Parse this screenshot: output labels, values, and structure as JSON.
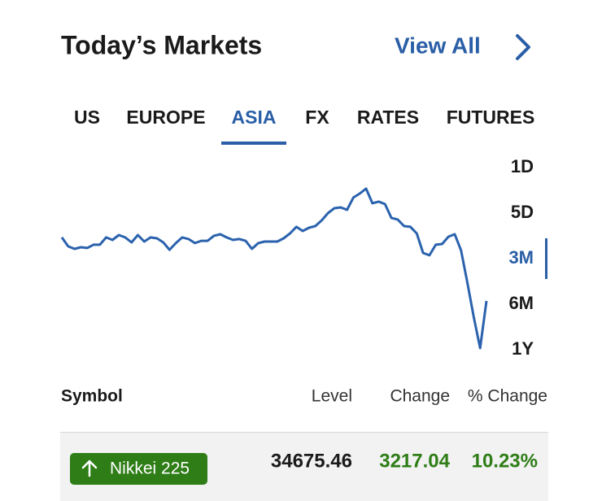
{
  "header": {
    "title": "Today’s Markets",
    "link": "View All"
  },
  "tabs": {
    "items": [
      "US",
      "EUROPE",
      "ASIA",
      "FX",
      "RATES",
      "FUTURES"
    ],
    "active": 2
  },
  "ranges": {
    "items": [
      "1D",
      "5D",
      "3M",
      "6M",
      "1Y"
    ],
    "active": 2
  },
  "chart_data": {
    "type": "line",
    "color": "#2a62ad",
    "values": [
      39010,
      38400,
      38230,
      38340,
      38290,
      38510,
      38510,
      39010,
      38840,
      39170,
      39010,
      38670,
      39170,
      38730,
      39010,
      38950,
      38670,
      38170,
      38620,
      39010,
      38900,
      38620,
      38780,
      38780,
      39120,
      39230,
      39010,
      38840,
      38900,
      38780,
      38230,
      38620,
      38730,
      38730,
      38730,
      38950,
      39280,
      39730,
      39450,
      39670,
      39780,
      40170,
      40670,
      41000,
      41060,
      40890,
      41730,
      42000,
      42340,
      41340,
      41450,
      41280,
      40340,
      40230,
      39780,
      39730,
      39280,
      37950,
      37790,
      38510,
      38560,
      39060,
      39230,
      38120,
      35900,
      33570,
      31460,
      34680
    ],
    "ylim": [
      31000,
      42800
    ]
  },
  "table": {
    "columns": [
      "Symbol",
      "Level",
      "Change",
      "% Change"
    ],
    "rows": [
      [
        "Nikkei 225",
        "34675.46",
        "3217.04",
        "10.23%"
      ]
    ]
  }
}
